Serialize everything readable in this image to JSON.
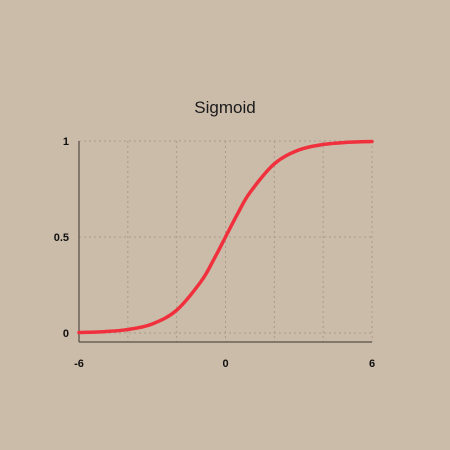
{
  "chart_data": {
    "type": "line",
    "title": "Sigmoid",
    "xlabel": "",
    "ylabel": "",
    "xlim": [
      -6,
      6
    ],
    "ylim": [
      0,
      1
    ],
    "x_ticks": [
      -6,
      0,
      6
    ],
    "x_tick_labels": [
      "-6",
      "0",
      "6"
    ],
    "y_ticks": [
      0,
      0.5,
      1
    ],
    "y_tick_labels": [
      "0",
      "0.5",
      "1"
    ],
    "grid": true,
    "legend": "none",
    "series": [
      {
        "color": "#f0303c",
        "x": [
          -6,
          -5,
          -4,
          -3,
          -2,
          -1,
          -0.5,
          0,
          0.5,
          1,
          2,
          3,
          4,
          5,
          6
        ],
        "y": [
          0.0025,
          0.0067,
          0.018,
          0.047,
          0.119,
          0.269,
          0.378,
          0.5,
          0.622,
          0.731,
          0.881,
          0.953,
          0.982,
          0.9933,
          0.9975
        ]
      }
    ]
  },
  "colors": {
    "background": "#cbbba9",
    "series": "#f0303c",
    "grid": "#a89a89",
    "axis": "#3a3530"
  }
}
